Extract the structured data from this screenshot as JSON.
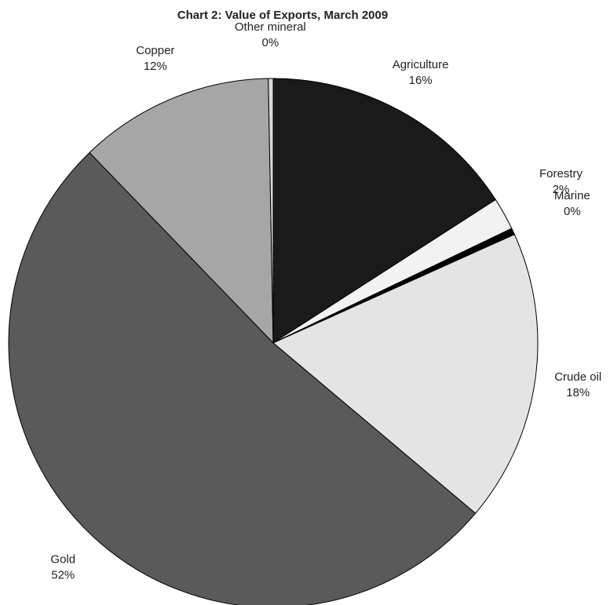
{
  "chart_data": {
    "type": "pie",
    "title": "Chart 2: Value of Exports, March 2009",
    "categories": [
      "Agriculture",
      "Forestry",
      "Marine",
      "Crude oil",
      "Gold",
      "Copper",
      "Other mineral"
    ],
    "values": [
      16,
      2,
      0.4,
      18,
      52,
      12,
      0.3
    ],
    "value_labels": [
      "16%",
      "2%",
      "0%",
      "18%",
      "52%",
      "12%",
      "0%"
    ],
    "colors": [
      "#1a1a1a",
      "#f2f2f2",
      "#000000",
      "#e4e4e4",
      "#5a5a5a",
      "#a6a6a6",
      "#d8d8d8"
    ]
  }
}
